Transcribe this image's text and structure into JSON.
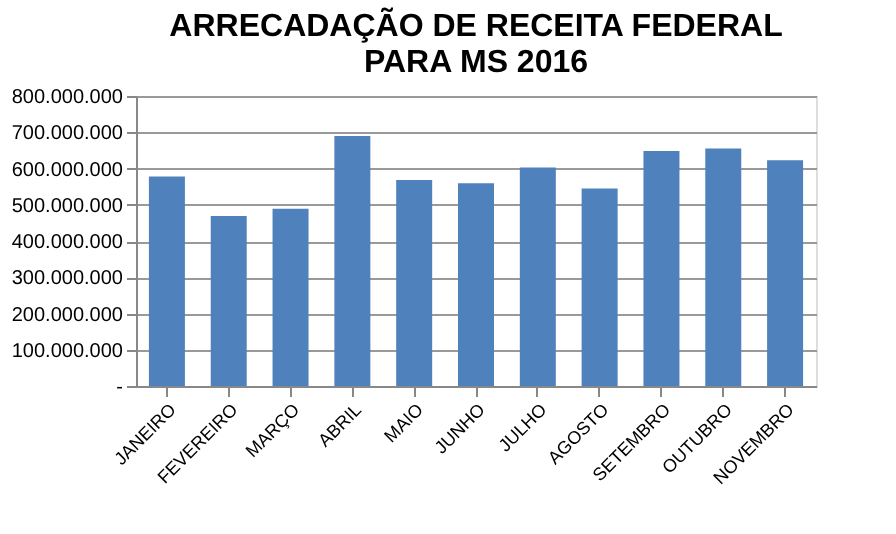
{
  "chart_data": {
    "type": "bar",
    "title": [
      "ARRECADAÇÃO DE RECEITA FEDERAL",
      "PARA MS 2016"
    ],
    "categories": [
      "JANEIRO",
      "FEVEREIRO",
      "MARÇO",
      "ABRIL",
      "MAIO",
      "JUNHO",
      "JULHO",
      "AGOSTO",
      "SETEMBRO",
      "OUTUBRO",
      "NOVEMBRO"
    ],
    "values": [
      578000000,
      469000000,
      489000000,
      690000000,
      568000000,
      559000000,
      603000000,
      545000000,
      648000000,
      655000000,
      623000000
    ],
    "color": "#4f81bd",
    "ylim": [
      0,
      800000000
    ],
    "yticks": [
      {
        "value": 0,
        "label": "-"
      },
      {
        "value": 100000000,
        "label": "100.000.000"
      },
      {
        "value": 200000000,
        "label": "200.000.000"
      },
      {
        "value": 300000000,
        "label": "300.000.000"
      },
      {
        "value": 400000000,
        "label": "400.000.000"
      },
      {
        "value": 500000000,
        "label": "500.000.000"
      },
      {
        "value": 600000000,
        "label": "600.000.000"
      },
      {
        "value": 700000000,
        "label": "700.000.000"
      },
      {
        "value": 800000000,
        "label": "800.000.000"
      }
    ],
    "grid": "y"
  }
}
